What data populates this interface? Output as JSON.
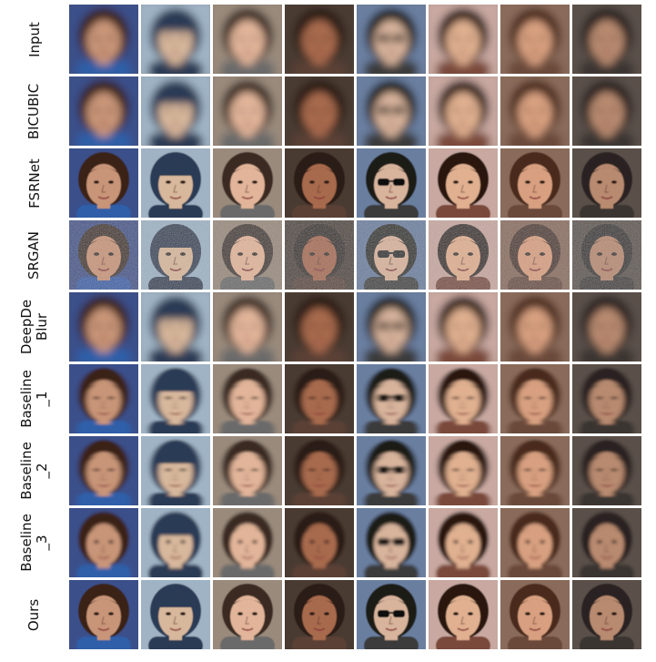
{
  "rows": [
    {
      "label": "Input",
      "mode": "blur"
    },
    {
      "label": "BICUBIC",
      "mode": "blur"
    },
    {
      "label": "FSRNet",
      "mode": "sharp"
    },
    {
      "label": "SRGAN",
      "mode": "noisy"
    },
    {
      "label": "DeepDe\nBlur",
      "mode": "blur"
    },
    {
      "label": "Baseline\n_1",
      "mode": "smear"
    },
    {
      "label": "Baseline\n_2",
      "mode": "smear"
    },
    {
      "label": "Baseline\n_3",
      "mode": "soft"
    },
    {
      "label": "Ours",
      "mode": "sharp"
    }
  ],
  "subjects": [
    {
      "bg": "#3a4f8a",
      "hair": "#3b2418",
      "skin": "#c99578",
      "shirt": "#2d5ea8",
      "glasses": false,
      "hat": false
    },
    {
      "bg": "#9fb3c4",
      "hair": "#2c3a55",
      "skin": "#d8b89c",
      "shirt": "#2c3a55",
      "glasses": false,
      "hat": true
    },
    {
      "bg": "#9a8a7c",
      "hair": "#3a2a20",
      "skin": "#e2b59a",
      "shirt": "#6a6a6a",
      "glasses": false,
      "hat": false
    },
    {
      "bg": "#4a3a30",
      "hair": "#2a1a12",
      "skin": "#a86a4e",
      "shirt": "#5a4036",
      "glasses": false,
      "hat": false
    },
    {
      "bg": "#6a7fa0",
      "hair": "#1e1a18",
      "skin": "#d8b49c",
      "shirt": "#3a3a3a",
      "glasses": true,
      "hat": false
    },
    {
      "bg": "#c8a8a0",
      "hair": "#2a1810",
      "skin": "#e0b090",
      "shirt": "#7a4a3a",
      "glasses": false,
      "hat": false
    },
    {
      "bg": "#8a6a5a",
      "hair": "#4a2a1a",
      "skin": "#d8a080",
      "shirt": "#6a4a3a",
      "glasses": false,
      "hat": false
    },
    {
      "bg": "#5a5048",
      "hair": "#2a2420",
      "skin": "#b88a70",
      "shirt": "#3a3430",
      "glasses": false,
      "hat": false
    }
  ]
}
